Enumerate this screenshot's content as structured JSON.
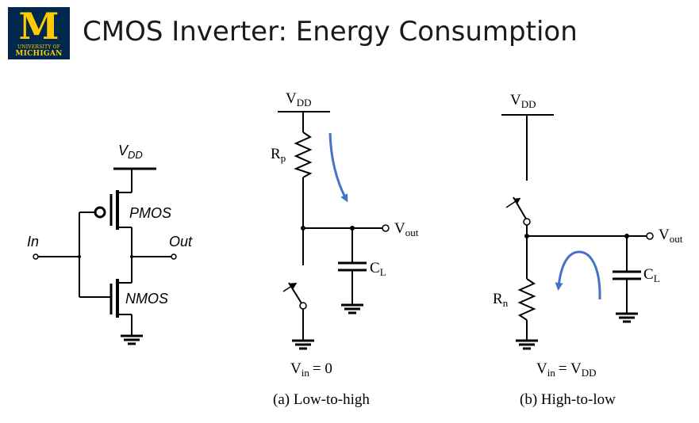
{
  "header": {
    "title": "CMOS Inverter: Energy Consumption",
    "logo_letter": "M",
    "logo_line1": "UNIVERSITY OF",
    "logo_line2": "MICHIGAN"
  },
  "inverter": {
    "vdd": "V",
    "vdd_sub": "DD",
    "pmos": "PMOS",
    "nmos": "NMOS",
    "in": "In",
    "out": "Out"
  },
  "circuit_a": {
    "vdd": "V",
    "vdd_sub": "DD",
    "resistor": "R",
    "resistor_sub": "p",
    "vout": "V",
    "vout_sub": "out",
    "cap": "C",
    "cap_sub": "L",
    "vin": "V",
    "vin_sub": "in",
    "vin_value": "=  0",
    "caption": "(a) Low-to-high"
  },
  "circuit_b": {
    "vdd": "V",
    "vdd_sub": "DD",
    "resistor": "R",
    "resistor_sub": "n",
    "vout": "V",
    "vout_sub": "out",
    "cap": "C",
    "cap_sub": "L",
    "vin": "V",
    "vin_sub": "in",
    "vin_value": "=  V",
    "vin_value_sub": "DD",
    "caption": "(b) High-to-low"
  },
  "colors": {
    "logo_bg": "#00274C",
    "logo_fg": "#FFCB05",
    "current_arrow": "#4472C4"
  }
}
